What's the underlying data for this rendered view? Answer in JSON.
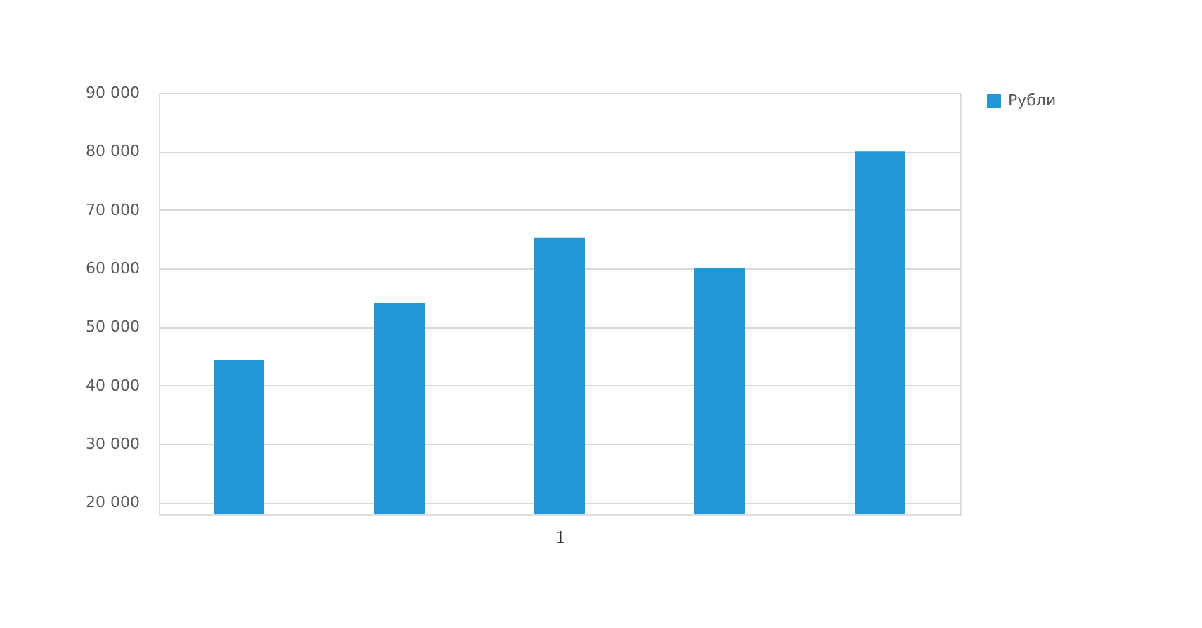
{
  "chart_data": {
    "type": "bar",
    "xlabel": "1",
    "categories": [
      null,
      null,
      null,
      null,
      null
    ],
    "series": [
      {
        "name": "Рубли",
        "color": "#2199d6",
        "values": [
          44300,
          54000,
          65200,
          60000,
          80000
        ]
      }
    ],
    "ylim": [
      18000,
      90000
    ],
    "yticks": [
      {
        "value": 20000,
        "label": "20 000"
      },
      {
        "value": 30000,
        "label": "30 000"
      },
      {
        "value": 40000,
        "label": "40 000"
      },
      {
        "value": 50000,
        "label": "50 000"
      },
      {
        "value": 60000,
        "label": "60 000"
      },
      {
        "value": 70000,
        "label": "70 000"
      },
      {
        "value": 80000,
        "label": "80 000"
      },
      {
        "value": 90000,
        "label": "90 000"
      }
    ],
    "grid": "y",
    "legend": "right"
  }
}
